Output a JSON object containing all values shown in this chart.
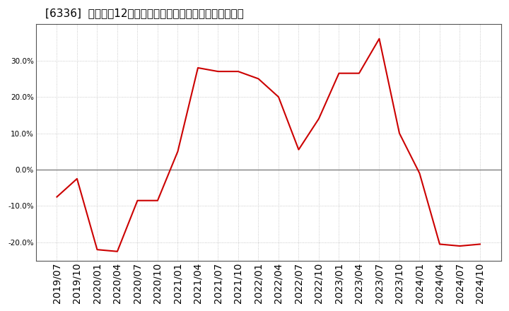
{
  "title": "[6336]  売上高の12か月移動合計の対前年同期増減率の推移",
  "line_color": "#cc0000",
  "background_color": "#ffffff",
  "plot_bg_color": "#ffffff",
  "grid_color": "#bbbbbb",
  "zero_line_color": "#666666",
  "labels": [
    "2019/07",
    "2019/10",
    "2020/01",
    "2020/04",
    "2020/07",
    "2020/10",
    "2021/01",
    "2021/04",
    "2021/07",
    "2021/10",
    "2022/01",
    "2022/04",
    "2022/07",
    "2022/10",
    "2023/01",
    "2023/04",
    "2023/07",
    "2023/10",
    "2024/01",
    "2024/04",
    "2024/07",
    "2024/10"
  ],
  "values": [
    -7.5,
    -2.5,
    -22.0,
    -22.5,
    -8.5,
    -8.5,
    5.0,
    28.0,
    27.0,
    27.0,
    25.0,
    20.0,
    5.5,
    14.0,
    26.5,
    26.5,
    36.0,
    10.0,
    -1.0,
    -20.5,
    -21.0,
    -20.5
  ],
  "ylim": [
    -25,
    40
  ],
  "yticks": [
    -20.0,
    -10.0,
    0.0,
    10.0,
    20.0,
    30.0
  ],
  "title_fontsize": 11,
  "tick_fontsize": 7.5
}
